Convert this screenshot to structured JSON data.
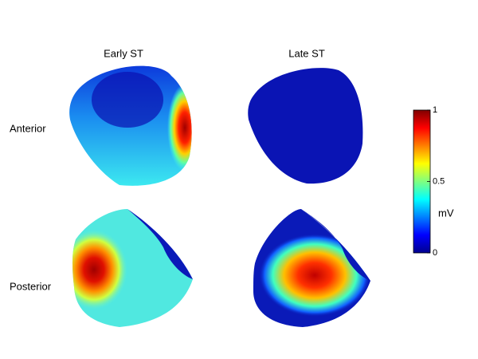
{
  "columns": [
    "Early ST",
    "Late ST"
  ],
  "rows": [
    "Anterior",
    "Posterior"
  ],
  "colorbar": {
    "label": "mV",
    "lim": [
      0,
      1
    ],
    "ticks": [
      0,
      0.5,
      1
    ]
  }
}
